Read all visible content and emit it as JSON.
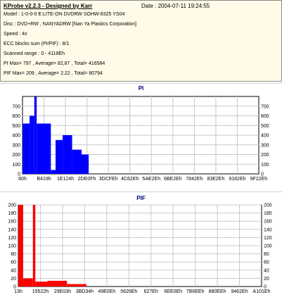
{
  "header": {
    "title": "KProbe v2.2.3 - Designed by Karr",
    "date": "Date : 2004-07-11 19:24:55",
    "lines": [
      "Model : 1-0-0-0 E:LITE-ON DVDRW SOHW-8325  YS04",
      "Disc : DVD+RW , NANYADRW [Nan Ya Plastics Corporation]",
      "Speed : 4x",
      "ECC blocks sum (PI/PIF) : 8/1",
      "Scanned range : 0 - 4118Eh",
      "PI Max= 797 , Average= 82,87 , Total= 416584",
      "PIF Max= 209 , Average= 2,22 , Total= 80794"
    ]
  },
  "colors": {
    "bar": "#0000ff",
    "pif": "#ff0000",
    "axis": "#000000",
    "grid": "#c8c8c8"
  },
  "chart_data": [
    {
      "type": "bar",
      "title": "PI",
      "ylim": [
        0,
        800
      ],
      "yticks": [
        0,
        100,
        200,
        300,
        400,
        500,
        600,
        700
      ],
      "xticks": [
        "80h",
        "B419h",
        "1E124h",
        "2DE0Fh",
        "3DCFEh",
        "4C62Eh",
        "5AE2Eh",
        "6BE2Eh",
        "7842Eh",
        "83E2Eh",
        "9182Eh",
        "9F22Eh"
      ],
      "grid": true,
      "series_color": "#0000ff",
      "segments": [
        {
          "x_range": [
            0.0,
            0.03
          ],
          "value": 520
        },
        {
          "x_range": [
            0.03,
            0.05
          ],
          "value": 600
        },
        {
          "x_range": [
            0.05,
            0.06
          ],
          "value": 797
        },
        {
          "x_range": [
            0.06,
            0.12
          ],
          "value": 520
        },
        {
          "x_range": [
            0.12,
            0.14
          ],
          "value": 40
        },
        {
          "x_range": [
            0.14,
            0.17
          ],
          "value": 350
        },
        {
          "x_range": [
            0.17,
            0.21
          ],
          "value": 400
        },
        {
          "x_range": [
            0.21,
            0.25
          ],
          "value": 250
        },
        {
          "x_range": [
            0.25,
            0.28
          ],
          "value": 200
        }
      ]
    },
    {
      "type": "bar",
      "title": "PIF",
      "ylim": [
        0,
        200
      ],
      "yticks": [
        0,
        20,
        40,
        60,
        80,
        100,
        120,
        140,
        160,
        180,
        200
      ],
      "xticks": [
        "13h",
        "15522h",
        "29E03h",
        "3BD34h",
        "49E0Eh",
        "5626Eh",
        "627Eh",
        "6EE0Eh",
        "7B6EEh",
        "880EEh",
        "9462Eh",
        "A101Eh"
      ],
      "grid": true,
      "series_color": "#ff0000",
      "segments": [
        {
          "x_range": [
            0.0,
            0.02
          ],
          "value": 209
        },
        {
          "x_range": [
            0.02,
            0.06
          ],
          "value": 20
        },
        {
          "x_range": [
            0.06,
            0.07
          ],
          "value": 209
        },
        {
          "x_range": [
            0.07,
            0.12
          ],
          "value": 12
        },
        {
          "x_range": [
            0.12,
            0.2
          ],
          "value": 14
        },
        {
          "x_range": [
            0.2,
            0.28
          ],
          "value": 6
        }
      ]
    }
  ]
}
